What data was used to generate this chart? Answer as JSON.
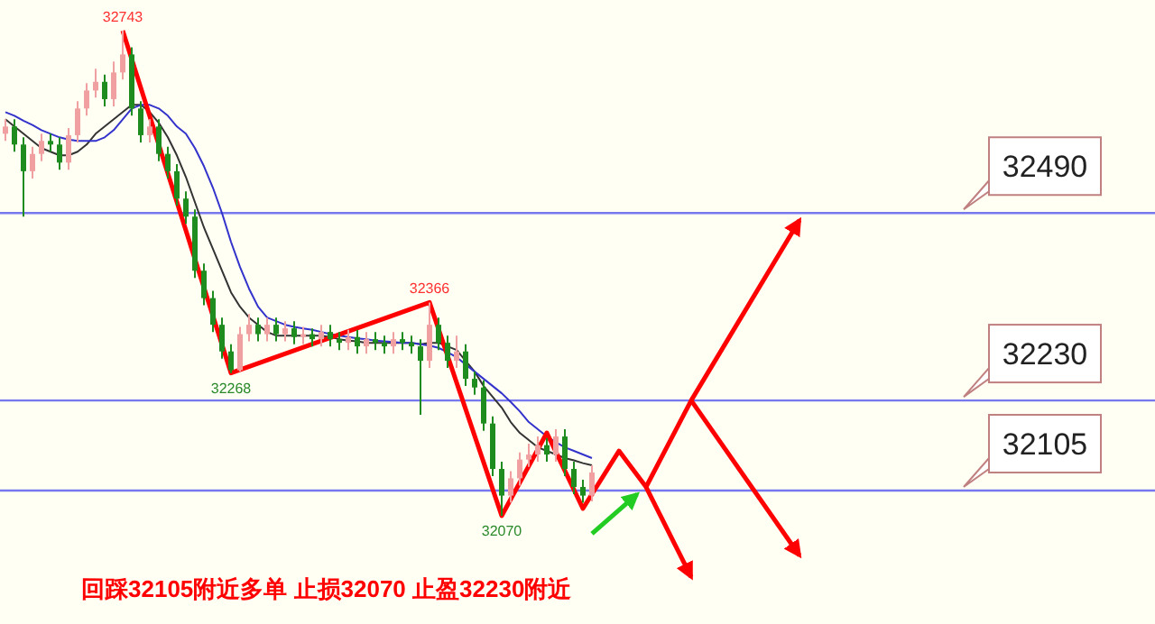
{
  "chart_data": {
    "type": "candlestick",
    "categories": [
      null,
      null,
      null,
      null,
      null,
      null,
      null,
      null,
      null,
      null,
      null,
      null,
      null,
      null,
      null,
      null,
      null,
      null,
      null,
      null,
      null,
      null,
      null,
      null,
      null,
      null,
      null,
      null,
      null,
      null,
      null,
      null,
      null,
      null,
      null,
      null,
      null,
      null,
      null,
      null,
      null,
      null,
      null,
      null,
      null,
      null,
      null,
      null,
      null,
      null,
      null,
      null,
      null,
      null,
      null,
      null,
      null,
      null,
      null,
      null,
      null,
      null,
      null,
      null,
      null,
      null,
      null,
      null,
      null,
      null,
      null,
      null,
      null,
      null,
      null,
      null,
      null,
      null,
      null,
      null,
      null,
      null,
      null,
      null,
      null,
      null,
      null,
      null,
      null
    ],
    "ohlc": [
      [
        32600,
        32620,
        32590,
        32610
      ],
      [
        32610,
        32620,
        32575,
        32585
      ],
      [
        32585,
        32595,
        32485,
        32548
      ],
      [
        32548,
        32582,
        32538,
        32572
      ],
      [
        32572,
        32600,
        32562,
        32590
      ],
      [
        32590,
        32600,
        32575,
        32585
      ],
      [
        32585,
        32595,
        32550,
        32560
      ],
      [
        32560,
        32608,
        32550,
        32598
      ],
      [
        32598,
        32645,
        32588,
        32635
      ],
      [
        32635,
        32670,
        32625,
        32660
      ],
      [
        32660,
        32690,
        32650,
        32672
      ],
      [
        32672,
        32682,
        32638,
        32648
      ],
      [
        32648,
        32700,
        32638,
        32685
      ],
      [
        32685,
        32743,
        32675,
        32710
      ],
      [
        32710,
        32720,
        32625,
        32635
      ],
      [
        32635,
        32645,
        32588,
        32598
      ],
      [
        32598,
        32620,
        32588,
        32610
      ],
      [
        32610,
        32620,
        32562,
        32572
      ],
      [
        32572,
        32582,
        32538,
        32548
      ],
      [
        32548,
        32558,
        32500,
        32510
      ],
      [
        32510,
        32520,
        32475,
        32485
      ],
      [
        32485,
        32495,
        32400,
        32410
      ],
      [
        32410,
        32420,
        32362,
        32372
      ],
      [
        32372,
        32382,
        32325,
        32335
      ],
      [
        32335,
        32345,
        32288,
        32298
      ],
      [
        32298,
        32308,
        32268,
        32272
      ],
      [
        32272,
        32332,
        32270,
        32322
      ],
      [
        32322,
        32350,
        32312,
        32335
      ],
      [
        32335,
        32345,
        32312,
        32322
      ],
      [
        32322,
        32345,
        32312,
        32335
      ],
      [
        32335,
        32345,
        32312,
        32322
      ],
      [
        32322,
        32340,
        32312,
        32330
      ],
      [
        32330,
        32340,
        32308,
        32318
      ],
      [
        32318,
        32332,
        32308,
        32322
      ],
      [
        32322,
        32330,
        32305,
        32315
      ],
      [
        32315,
        32335,
        32305,
        32325
      ],
      [
        32325,
        32335,
        32305,
        32315
      ],
      [
        32315,
        32325,
        32300,
        32310
      ],
      [
        32310,
        32328,
        32300,
        32318
      ],
      [
        32318,
        32328,
        32295,
        32305
      ],
      [
        32305,
        32325,
        32295,
        32315
      ],
      [
        32315,
        32325,
        32300,
        32310
      ],
      [
        32310,
        32320,
        32295,
        32305
      ],
      [
        32305,
        32325,
        32295,
        32315
      ],
      [
        32315,
        32325,
        32300,
        32310
      ],
      [
        32310,
        32320,
        32295,
        32305
      ],
      [
        32305,
        32315,
        32210,
        32285
      ],
      [
        32285,
        32366,
        32275,
        32335
      ],
      [
        32335,
        32345,
        32300,
        32310
      ],
      [
        32310,
        32320,
        32275,
        32285
      ],
      [
        32285,
        32320,
        32275,
        32298
      ],
      [
        32298,
        32308,
        32250,
        32260
      ],
      [
        32260,
        32270,
        32238,
        32248
      ],
      [
        32248,
        32258,
        32188,
        32198
      ],
      [
        32198,
        32208,
        32125,
        32135
      ],
      [
        32135,
        32145,
        32070,
        32098
      ],
      [
        32098,
        32132,
        32088,
        32122
      ],
      [
        32122,
        32158,
        32112,
        32148
      ],
      [
        32148,
        32170,
        32138,
        32155
      ],
      [
        32155,
        32180,
        32145,
        32168
      ],
      [
        32168,
        32178,
        32145,
        32155
      ],
      [
        32155,
        32190,
        32145,
        32180
      ],
      [
        32180,
        32190,
        32125,
        32135
      ],
      [
        32135,
        32145,
        32100,
        32110
      ],
      [
        32110,
        32120,
        32088,
        32098
      ],
      [
        32098,
        32140,
        32090,
        32130
      ],
      null,
      null,
      null,
      null,
      null,
      null,
      null,
      null,
      null,
      null,
      null,
      null,
      null,
      null,
      null,
      null,
      null,
      null,
      null,
      null,
      null,
      null,
      null
    ],
    "series": [
      {
        "type": "line",
        "color": "#333333",
        "values": [
          32620,
          32610,
          32600,
          32590,
          32580,
          32575,
          32570,
          32570,
          32575,
          32585,
          32600,
          32610,
          32620,
          32630,
          32640,
          32640,
          32630,
          32615,
          32595,
          32570,
          32540,
          32505,
          32470,
          32440,
          32410,
          32380,
          32360,
          32345,
          32335,
          32325,
          32320,
          32320,
          32320,
          32320,
          32320,
          32320,
          32318,
          32315,
          32313,
          32312,
          32310,
          32310,
          32310,
          32310,
          32310,
          32310,
          32308,
          32310,
          32310,
          32305,
          32300,
          32285,
          32270,
          32250,
          32235,
          32220,
          32200,
          32185,
          32175,
          32165,
          32160,
          32155,
          32150,
          32147,
          32143,
          32140,
          null,
          null,
          null,
          null,
          null,
          null,
          null,
          null,
          null,
          null,
          null,
          null,
          null,
          null,
          null,
          null,
          null,
          null,
          null,
          null,
          null,
          null,
          null
        ]
      },
      {
        "type": "line",
        "color": "#3333cc",
        "values": [
          32630,
          32625,
          32618,
          32612,
          32605,
          32600,
          32595,
          32592,
          32590,
          32590,
          32590,
          32595,
          32605,
          32620,
          32635,
          32640,
          32640,
          32635,
          32625,
          32610,
          32600,
          32580,
          32555,
          32525,
          32490,
          32450,
          32415,
          32385,
          32360,
          32345,
          32340,
          32335,
          32332,
          32330,
          32328,
          32325,
          32322,
          32320,
          32318,
          32316,
          32315,
          32313,
          32312,
          32311,
          32310,
          32310,
          32308,
          32306,
          32303,
          32297,
          32290,
          32280,
          32270,
          32260,
          32250,
          32240,
          32228,
          32215,
          32200,
          32190,
          32180,
          32172,
          32165,
          32160,
          32155,
          32150,
          null,
          null,
          null,
          null,
          null,
          null,
          null,
          null,
          null,
          null,
          null,
          null,
          null,
          null,
          null,
          null,
          null,
          null,
          null,
          null,
          null,
          null,
          null
        ]
      },
      {
        "type": "line",
        "color": "#ff0000",
        "values": [
          null,
          null,
          null,
          null,
          null,
          null,
          null,
          null,
          null,
          null,
          null,
          null,
          null,
          32743,
          null,
          null,
          null,
          null,
          null,
          null,
          null,
          null,
          null,
          null,
          null,
          32268,
          null,
          null,
          null,
          null,
          null,
          null,
          null,
          null,
          null,
          null,
          null,
          null,
          null,
          null,
          null,
          null,
          null,
          null,
          null,
          null,
          null,
          32366,
          null,
          null,
          null,
          null,
          null,
          null,
          null,
          32070,
          null,
          null,
          null,
          null,
          32185,
          null,
          null,
          null,
          32080,
          null,
          null,
          null,
          32160,
          null,
          null,
          32110,
          null,
          null,
          null,
          null,
          32230,
          null,
          null,
          null,
          null,
          null,
          null,
          null,
          null,
          null,
          null,
          null,
          32480
        ]
      },
      {
        "type": "line",
        "color": "#ff0000",
        "values": [
          null,
          null,
          null,
          null,
          null,
          null,
          null,
          null,
          null,
          null,
          null,
          null,
          null,
          null,
          null,
          null,
          null,
          null,
          null,
          null,
          null,
          null,
          null,
          null,
          null,
          null,
          null,
          null,
          null,
          null,
          null,
          null,
          null,
          null,
          null,
          null,
          null,
          null,
          null,
          null,
          null,
          null,
          null,
          null,
          null,
          null,
          null,
          null,
          null,
          null,
          null,
          null,
          null,
          null,
          null,
          null,
          null,
          null,
          null,
          null,
          null,
          null,
          null,
          null,
          null,
          null,
          null,
          null,
          null,
          null,
          null,
          null,
          null,
          null,
          null,
          null,
          32230,
          null,
          null,
          null,
          null,
          null,
          null,
          null,
          null,
          null,
          null,
          null,
          32015
        ]
      },
      {
        "type": "line",
        "color": "#ff0000",
        "values": [
          null,
          null,
          null,
          null,
          null,
          null,
          null,
          null,
          null,
          null,
          null,
          null,
          null,
          null,
          null,
          null,
          null,
          null,
          null,
          null,
          null,
          null,
          null,
          null,
          null,
          null,
          null,
          null,
          null,
          null,
          null,
          null,
          null,
          null,
          null,
          null,
          null,
          null,
          null,
          null,
          null,
          null,
          null,
          null,
          null,
          null,
          null,
          null,
          null,
          null,
          null,
          null,
          null,
          null,
          null,
          null,
          null,
          null,
          null,
          null,
          null,
          null,
          null,
          null,
          null,
          null,
          null,
          null,
          null,
          null,
          null,
          32110,
          null,
          null,
          null,
          null,
          31985,
          null,
          null,
          null,
          null,
          null,
          null,
          null,
          null,
          null,
          null,
          null,
          null
        ]
      },
      {
        "type": "line",
        "color": "#22cc22",
        "values": [
          null,
          null,
          null,
          null,
          null,
          null,
          null,
          null,
          null,
          null,
          null,
          null,
          null,
          null,
          null,
          null,
          null,
          null,
          null,
          null,
          null,
          null,
          null,
          null,
          null,
          null,
          null,
          null,
          null,
          null,
          null,
          null,
          null,
          null,
          null,
          null,
          null,
          null,
          null,
          null,
          null,
          null,
          null,
          null,
          null,
          null,
          null,
          null,
          null,
          null,
          null,
          null,
          null,
          null,
          null,
          null,
          null,
          null,
          null,
          null,
          null,
          null,
          null,
          null,
          null,
          32045,
          null,
          null,
          null,
          null,
          32100,
          null,
          null,
          null,
          null,
          null,
          null,
          null,
          null,
          null,
          null,
          null,
          null,
          null,
          null,
          null,
          null,
          null,
          null
        ]
      }
    ],
    "ref_lines": [
      {
        "axis": "y",
        "value": 32490,
        "label": "32490",
        "color": "#7777ee"
      },
      {
        "axis": "y",
        "value": 32230,
        "label": "32230",
        "color": "#7777ee"
      },
      {
        "axis": "y",
        "value": 32105,
        "label": "32105",
        "color": "#7777ee"
      }
    ],
    "annotations": [
      {
        "text": "32743",
        "y": 32743
      },
      {
        "text": "32268",
        "y": 32268
      },
      {
        "text": "32366",
        "y": 32366
      },
      {
        "text": "32070",
        "y": 32070
      },
      "回踩32105附近多单  止损32070  止盈32230附近"
    ]
  }
}
